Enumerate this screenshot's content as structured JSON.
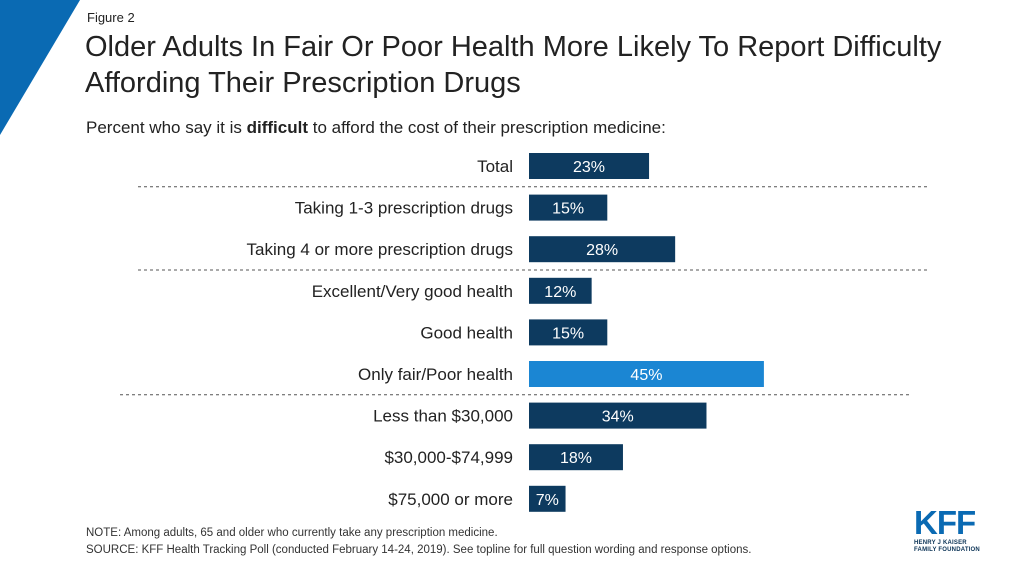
{
  "figure_label": "Figure 2",
  "title": "Older Adults In Fair Or Poor Health More Likely To Report Difficulty Affording Their Prescription Drugs",
  "subtitle": {
    "before": "Percent who say it is ",
    "emphasis": "difficult",
    "after": " to afford the cost of their prescription medicine:"
  },
  "colors": {
    "bar": "#0d3a5f",
    "highlight": "#1b86d3",
    "corner": "#0a6ab3",
    "divider": "#555555"
  },
  "chart_data": {
    "type": "bar",
    "orientation": "horizontal",
    "value_format": "percent",
    "xlim": [
      0,
      100
    ],
    "categories": [
      "Total",
      "Taking 1-3 prescription drugs",
      "Taking 4 or more prescription drugs",
      "Excellent/Very good health",
      "Good health",
      "Only fair/Poor health",
      "Less than $30,000",
      "$30,000-$74,999",
      "$75,000 or more"
    ],
    "values": [
      23,
      15,
      28,
      12,
      15,
      45,
      34,
      18,
      7
    ],
    "data_labels": [
      "23%",
      "15%",
      "28%",
      "12%",
      "15%",
      "45%",
      "34%",
      "18%",
      "7%"
    ],
    "highlighted_category": "Only fair/Poor health",
    "group_breaks_after": [
      "Total",
      "Taking 4 or more prescription drugs",
      "Only fair/Poor health"
    ]
  },
  "footnotes": {
    "note": "NOTE: Among adults, 65 and older who currently take any prescription medicine.",
    "source": "SOURCE: KFF Health Tracking Poll (conducted February 14-24, 2019). See topline for full question wording and response options."
  },
  "logo": {
    "letters": "KFF",
    "line1": "HENRY J KAISER",
    "line2": "FAMILY FOUNDATION"
  }
}
